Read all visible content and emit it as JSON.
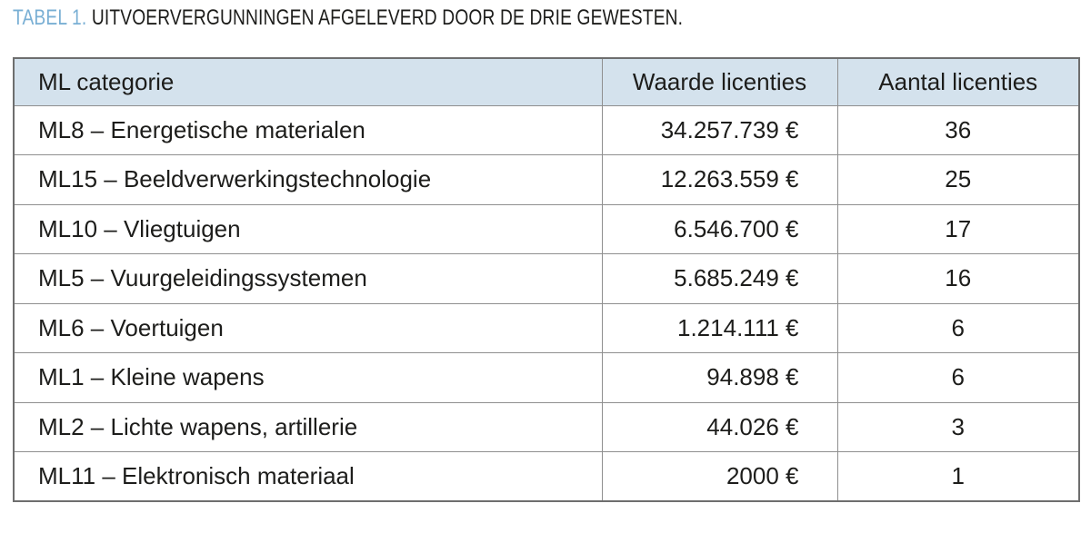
{
  "caption": {
    "label": "TABEL 1.",
    "text": " UITVOERVERGUNNINGEN AFGELEVERD DOOR DE DRIE GEWESTEN."
  },
  "chart_data": {
    "type": "table",
    "columns": [
      "ML categorie",
      "Waarde licenties",
      "Aantal licenties"
    ],
    "rows": [
      [
        "ML8 – Energetische materialen",
        "34.257.739 €",
        "36"
      ],
      [
        "ML15 – Beeldverwerkingstechnologie",
        "12.263.559 €",
        "25"
      ],
      [
        "ML10 – Vliegtuigen",
        "6.546.700 €",
        "17"
      ],
      [
        "ML5 – Vuurgeleidingssystemen",
        "5.685.249 €",
        "16"
      ],
      [
        "ML6 – Voertuigen",
        "1.214.111 €",
        "6"
      ],
      [
        "ML1 – Kleine wapens",
        "94.898 €",
        "6"
      ],
      [
        "ML2 – Lichte wapens, artillerie",
        "44.026 €",
        "3"
      ],
      [
        "ML11 – Elektronisch materiaal",
        "2000 €",
        "1"
      ]
    ]
  },
  "colors": {
    "caption_label": "#79afd4",
    "header_background": "#d4e2ed",
    "border_outer": "#6e6e6e",
    "border_inner": "#8f8f8f",
    "text": "#1d1d1b"
  }
}
